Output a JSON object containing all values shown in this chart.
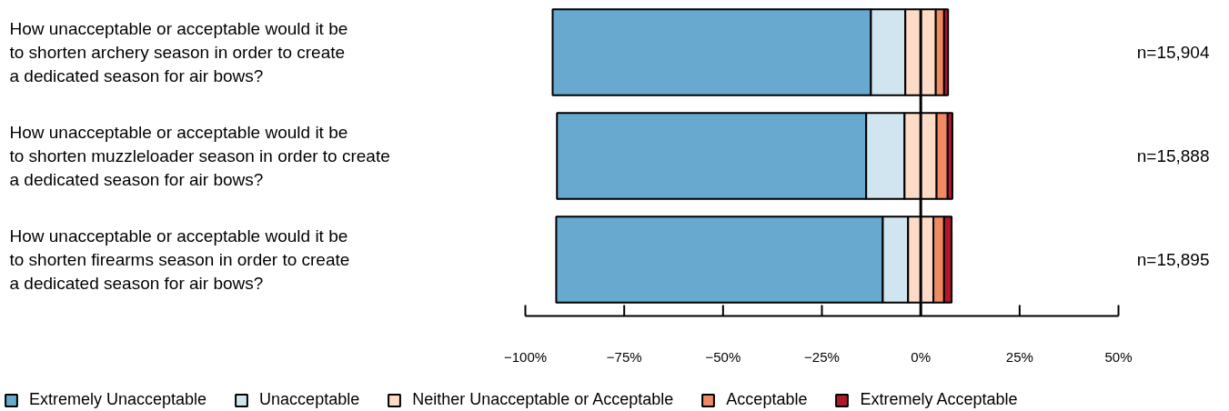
{
  "chart_data": {
    "type": "bar",
    "orientation": "horizontal",
    "categories": [
      "How unacceptable or acceptable would it be\nto shorten archery season in order to create\na dedicated season for air bows?",
      "How unacceptable or acceptable would it be\nto shorten muzzleloader season in order to create\na dedicated season for air bows?",
      "How unacceptable or acceptable would it be\nto shorten firearms season in order to create\na dedicated season for air bows?"
    ],
    "series": [
      {
        "name": "Extremely Unacceptable",
        "color": "#67a9cf",
        "base": [
          -93.1,
          -92.0,
          -92.2
        ],
        "values": [
          80.5,
          78.2,
          82.6
        ]
      },
      {
        "name": "Unacceptable",
        "color": "#d1e5f0",
        "base": [
          -12.6,
          -13.8,
          -9.6
        ],
        "values": [
          8.7,
          9.7,
          6.4
        ]
      },
      {
        "name": "Neither Unacceptable or Acceptable",
        "color": "#fddbc7",
        "base": [
          -3.9,
          -4.1,
          -3.2
        ],
        "values": [
          7.7,
          8.1,
          6.4
        ]
      },
      {
        "name": "Acceptable",
        "color": "#ef8a62",
        "base": [
          3.8,
          4.0,
          3.2
        ],
        "values": [
          2.1,
          2.8,
          2.7
        ]
      },
      {
        "name": "Extremely Acceptable",
        "color": "#b2182b",
        "base": [
          5.9,
          6.8,
          5.9
        ],
        "values": [
          1.0,
          1.2,
          1.9
        ]
      }
    ],
    "xlim": [
      -100,
      50
    ],
    "xticks": [
      {
        "value": -100,
        "label": "−100%"
      },
      {
        "value": -75,
        "label": "−75%"
      },
      {
        "value": -50,
        "label": "−50%"
      },
      {
        "value": -25,
        "label": "−25%"
      },
      {
        "value": 0,
        "label": "0%"
      },
      {
        "value": 25,
        "label": "25%"
      },
      {
        "value": 50,
        "label": "50%"
      }
    ],
    "ref_lines": [
      {
        "axis": "x",
        "value": 0,
        "label": null,
        "color": "#000000"
      }
    ],
    "annotations": [
      "n=15,904",
      "n=15,888",
      "n=15,895"
    ],
    "grid": false,
    "legend": "bottom"
  }
}
